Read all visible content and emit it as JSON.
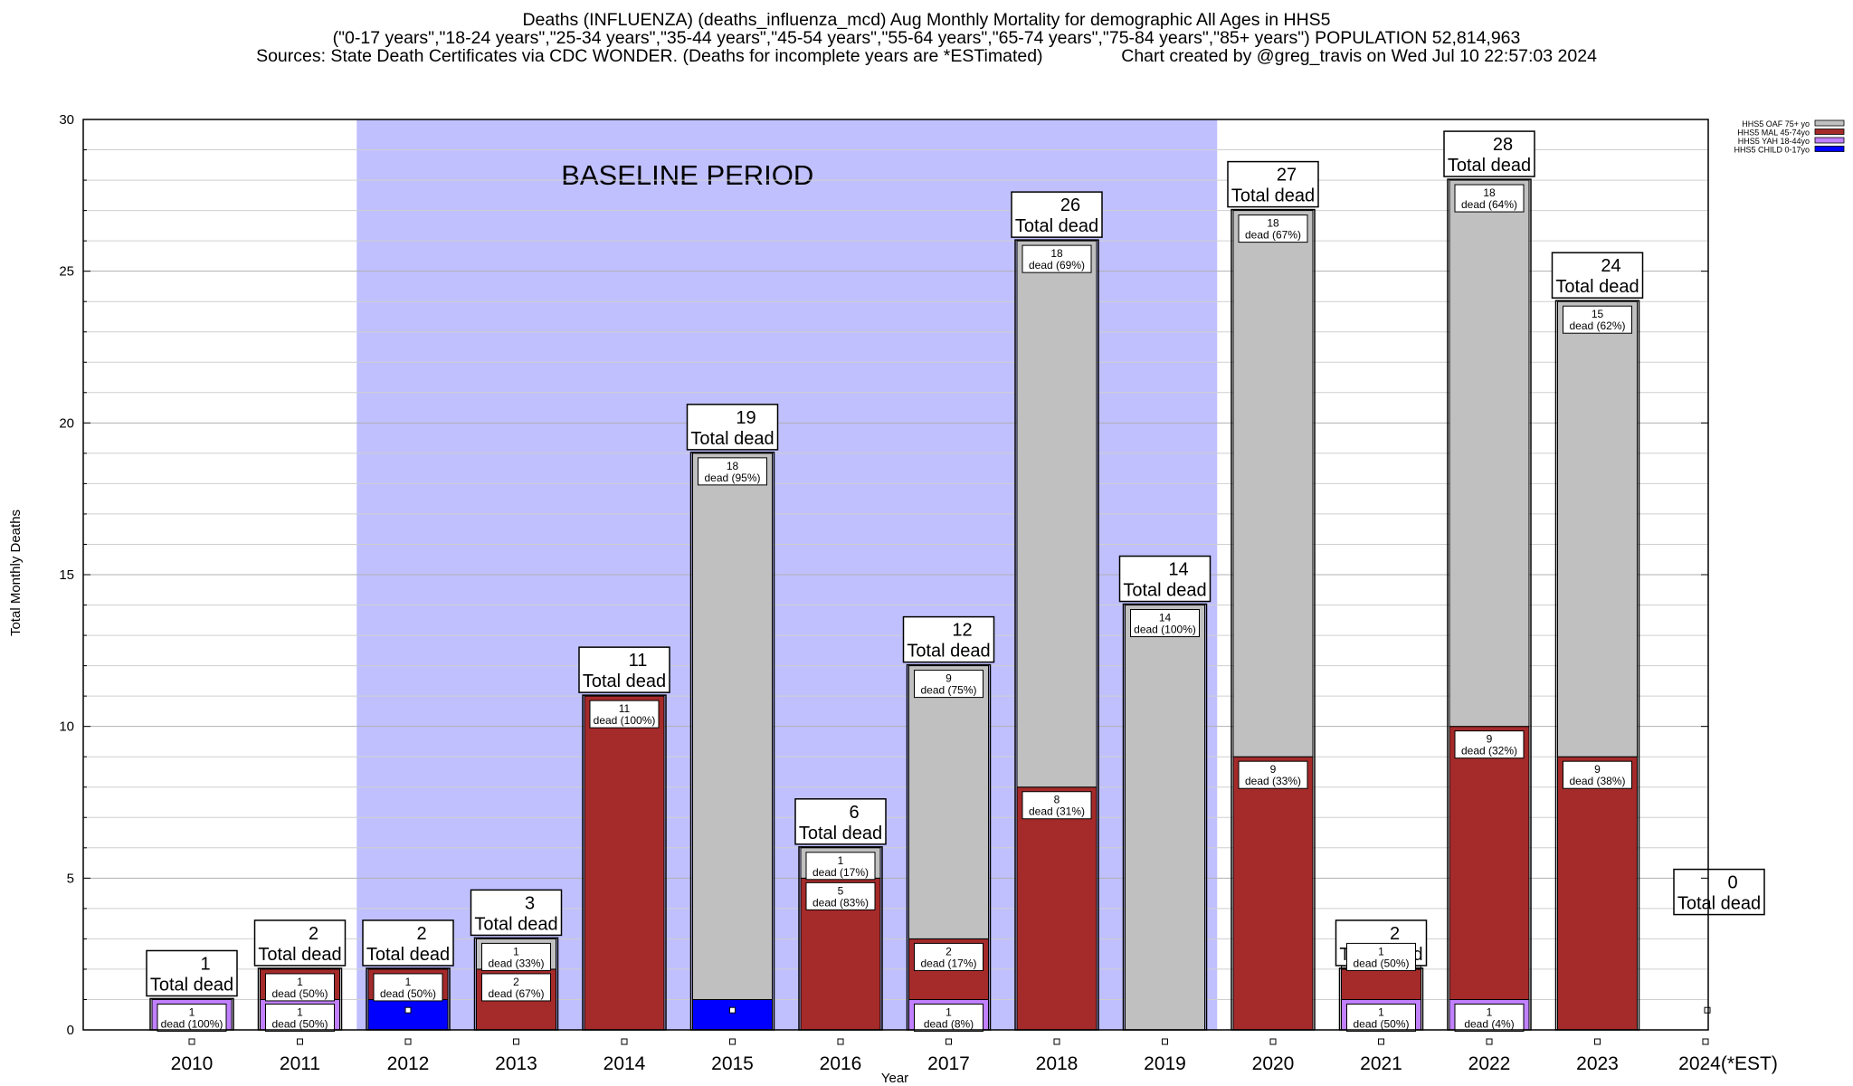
{
  "titles": {
    "line1": "Deaths (INFLUENZA) (deaths_influenza_mcd) Aug Monthly Mortality for demographic All Ages in HHS5",
    "line2": "(\"0-17 years\",\"18-24 years\",\"25-34 years\",\"35-44 years\",\"45-54 years\",\"55-64 years\",\"65-74 years\",\"75-84 years\",\"85+ years\") POPULATION 52,814,963",
    "line3": "Sources: State Death Certificates via CDC WONDER. (Deaths for incomplete years are *ESTimated)                Chart created by @greg_travis on Wed Jul 10 22:57:03 2024"
  },
  "chart_data": {
    "type": "bar",
    "stacked": true,
    "title": "Deaths (INFLUENZA) (deaths_influenza_mcd) Aug Monthly Mortality for demographic All Ages in HHS5",
    "xlabel": "Year",
    "ylabel": "Total Monthly Deaths",
    "ylim": [
      0,
      30
    ],
    "yticks": [
      0,
      5,
      10,
      15,
      20,
      25,
      30
    ],
    "grid": true,
    "legend_position": "top-right",
    "categories": [
      "2010",
      "2011",
      "2012",
      "2013",
      "2014",
      "2015",
      "2016",
      "2017",
      "2018",
      "2019",
      "2020",
      "2021",
      "2022",
      "2023",
      "2024(*EST)"
    ],
    "series": [
      {
        "name": "HHS5 CHILD 0-17yo",
        "color": "#0000ff",
        "values": [
          0,
          0,
          1,
          0,
          0,
          1,
          0,
          0,
          0,
          0,
          0,
          0,
          0,
          0,
          0
        ]
      },
      {
        "name": "HHS5 YAH 18-44yo",
        "color": "#c080ff",
        "values": [
          1,
          1,
          0,
          0,
          0,
          0,
          0,
          1,
          0,
          0,
          0,
          1,
          1,
          0,
          0
        ]
      },
      {
        "name": "HHS5 MAL 45-74yo",
        "color": "#a52a2a",
        "values": [
          0,
          1,
          1,
          2,
          11,
          0,
          5,
          2,
          8,
          0,
          9,
          1,
          9,
          9,
          0
        ]
      },
      {
        "name": "HHS5 OAF 75+ yo",
        "color": "#c0c0c0",
        "values": [
          0,
          0,
          0,
          1,
          0,
          18,
          1,
          9,
          18,
          14,
          18,
          1,
          18,
          15,
          0
        ]
      }
    ],
    "totals": [
      1,
      2,
      2,
      3,
      11,
      19,
      6,
      12,
      26,
      14,
      27,
      2,
      28,
      24,
      0
    ],
    "total_label": "Total dead",
    "segment_labels": [
      [
        {
          "series": 1,
          "text": "1\ndead (100%)"
        }
      ],
      [
        {
          "series": 1,
          "text": "1\ndead (50%)"
        },
        {
          "series": 2,
          "text": "1\ndead (50%)"
        }
      ],
      [
        {
          "series": 2,
          "text": "1\ndead (50%)"
        }
      ],
      [
        {
          "series": 2,
          "text": "2\ndead (67%)"
        },
        {
          "series": 3,
          "text": "1\ndead (33%)"
        }
      ],
      [
        {
          "series": 2,
          "text": "11\ndead (100%)"
        }
      ],
      [
        {
          "series": 3,
          "text": "18\ndead (95%)"
        }
      ],
      [
        {
          "series": 2,
          "text": "5\ndead (83%)"
        },
        {
          "series": 3,
          "text": "1\ndead (17%)"
        }
      ],
      [
        {
          "series": 1,
          "text": "1\ndead (8%)"
        },
        {
          "series": 2,
          "text": "2\ndead (17%)"
        },
        {
          "series": 3,
          "text": "9\ndead (75%)"
        }
      ],
      [
        {
          "series": 2,
          "text": "8\ndead (31%)"
        },
        {
          "series": 3,
          "text": "18\ndead (69%)"
        }
      ],
      [
        {
          "series": 3,
          "text": "14\ndead (100%)"
        }
      ],
      [
        {
          "series": 2,
          "text": "9\ndead (33%)"
        },
        {
          "series": 3,
          "text": "18\ndead (67%)"
        }
      ],
      [
        {
          "series": 1,
          "text": "1\ndead (50%)"
        },
        {
          "series": 3,
          "text": "1\ndead (50%)"
        }
      ],
      [
        {
          "series": 1,
          "text": "1\ndead (4%)"
        },
        {
          "series": 2,
          "text": "9\ndead (32%)"
        },
        {
          "series": 3,
          "text": "18\ndead (64%)"
        }
      ],
      [
        {
          "series": 2,
          "text": "9\ndead (38%)"
        },
        {
          "series": 3,
          "text": "15\ndead (62%)"
        }
      ],
      []
    ],
    "baseline": {
      "label": "BASELINE PERIOD",
      "from": "2012",
      "to": "2019",
      "color": "#c0c0ff"
    },
    "legend_order": [
      3,
      2,
      1,
      0
    ]
  }
}
